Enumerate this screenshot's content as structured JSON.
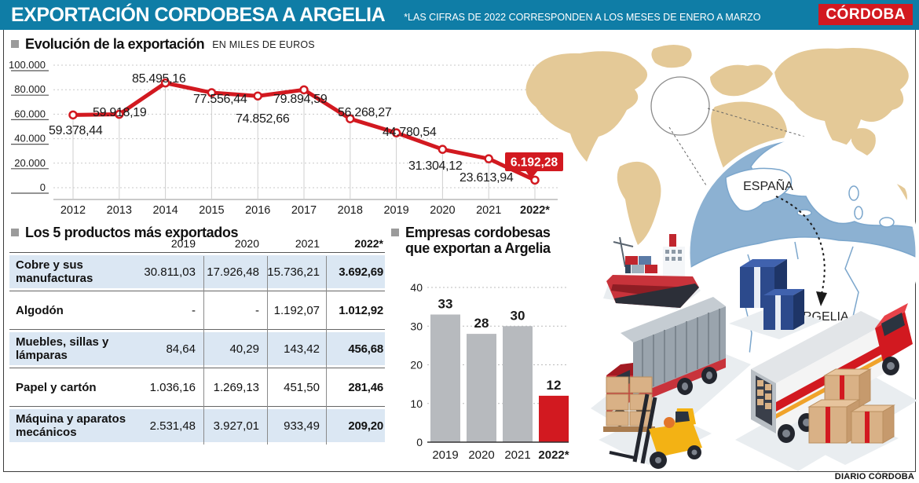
{
  "header": {
    "title": "EXPORTACIÓN CORDOBESA A ARGELIA",
    "note": "*LAS CIFRAS DE 2022 CORRESPONDEN A LOS MESES DE ENERO A MARZO",
    "brand": "CÓRDOBA"
  },
  "evolution": {
    "title": "Evolución de la exportación",
    "unit": "EN MILES DE EUROS"
  },
  "products": {
    "title": "Los 5 productos más exportados",
    "columns": [
      "2019",
      "2020",
      "2021",
      "2022*"
    ],
    "rows": [
      {
        "product": "Cobre y sus manufacturas",
        "values": [
          "30.811,03",
          "17.926,48",
          "15.736,21",
          "3.692,69"
        ]
      },
      {
        "product": "Algodón",
        "values": [
          "-",
          "-",
          "1.192,07",
          "1.012,92"
        ]
      },
      {
        "product": "Muebles, sillas y lámparas",
        "values": [
          "84,64",
          "40,29",
          "143,42",
          "456,68"
        ]
      },
      {
        "product": "Papel y cartón",
        "values": [
          "1.036,16",
          "1.269,13",
          "451,50",
          "281,46"
        ]
      },
      {
        "product": "Máquina y aparatos mecánicos",
        "values": [
          "2.531,48",
          "3.927,01",
          "933,49",
          "209,20"
        ]
      }
    ]
  },
  "companies": {
    "title_line1": "Empresas cordobesas",
    "title_line2": "que exportan a Argelia"
  },
  "map": {
    "spain_label": "ESPAÑA",
    "algeria_label": "ARGELIA"
  },
  "footer": {
    "credit": "DIARIO CÓRDOBA"
  },
  "colors": {
    "teal": "#0f7da6",
    "red": "#d21920",
    "bar_gray": "#b7babe",
    "stripe": "#dbe7f3",
    "map_tan": "#e4c997",
    "inset_sea": "#8cb1d2"
  },
  "chart_data": [
    {
      "type": "line",
      "title": "Evolución de la exportación",
      "ylabel": "EN MILES DE EUROS",
      "x": [
        "2012",
        "2013",
        "2014",
        "2015",
        "2016",
        "2017",
        "2018",
        "2019",
        "2020",
        "2021",
        "2022*"
      ],
      "values": [
        59378.44,
        59918.19,
        85495.16,
        77556.44,
        74852.66,
        79894.59,
        56268.27,
        44780.54,
        31304.12,
        23613.94,
        6192.28
      ],
      "value_labels": [
        "59.378,44",
        "59.918,19",
        "85.495,16",
        "77.556,44",
        "74.852,66",
        "79.894,59",
        "56.268,27",
        "44.780,54",
        "31.304,12",
        "23.613,94",
        "6.192,28"
      ],
      "y_ticks": [
        {
          "label": "100.000",
          "v": 100000
        },
        {
          "label": "80.000",
          "v": 80000
        },
        {
          "label": "60.000",
          "v": 60000
        },
        {
          "label": "40.000",
          "v": 40000
        },
        {
          "label": "20.000",
          "v": 20000
        },
        {
          "label": "0",
          "v": 0
        }
      ],
      "ylim": [
        0,
        100000
      ],
      "grid": "dashed",
      "highlight_last_label": true
    },
    {
      "type": "bar",
      "title": "Empresas cordobesas que exportan a Argelia",
      "categories": [
        "2019",
        "2020",
        "2021",
        "2022*"
      ],
      "values": [
        33,
        28,
        30,
        12
      ],
      "bar_colors": [
        "gray",
        "gray",
        "gray",
        "red"
      ],
      "y_ticks": [
        0,
        10,
        20,
        30,
        40
      ],
      "ylim": [
        0,
        40
      ],
      "grid": "dotted"
    }
  ]
}
